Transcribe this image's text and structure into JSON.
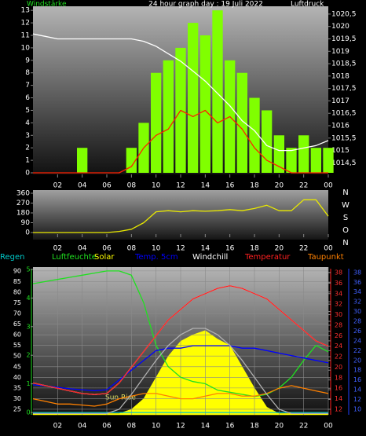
{
  "chart_data": [
    {
      "type": "combo",
      "title": "24 hour graph day : 19 Juli 2022",
      "ylabel": "Windstärke",
      "y2label": "Luftdruck",
      "x": [
        0,
        1,
        2,
        3,
        4,
        5,
        6,
        7,
        8,
        9,
        10,
        11,
        12,
        13,
        14,
        15,
        16,
        17,
        18,
        19,
        20,
        21,
        22,
        23,
        24
      ],
      "xlim": [
        0,
        24
      ],
      "xticks": [
        {
          "value": 2,
          "label": "02"
        },
        {
          "value": 4,
          "label": "04"
        },
        {
          "value": 6,
          "label": "06"
        },
        {
          "value": 8,
          "label": "08"
        },
        10,
        12,
        14,
        16,
        18,
        20,
        22,
        {
          "value": 24,
          "label": "00"
        }
      ],
      "ylim": [
        0,
        13.2
      ],
      "yticks": [
        0,
        1,
        2,
        3,
        4,
        5,
        6,
        7,
        8,
        9,
        10,
        11,
        12,
        13
      ],
      "y2lim": [
        1014.1,
        1020.75
      ],
      "y2ticks": [
        {
          "value": 1014.5,
          "label": "1014,5"
        },
        1015,
        {
          "value": 1015.5,
          "label": "1015,5"
        },
        1016,
        {
          "value": 1016.5,
          "label": "1016,5"
        },
        1017,
        {
          "value": 1017.5,
          "label": "1017,5"
        },
        1018,
        {
          "value": 1018.5,
          "label": "1018,5"
        },
        1019,
        {
          "value": 1019.5,
          "label": "1019,5"
        },
        1020,
        {
          "value": 1020.5,
          "label": "1020,5"
        }
      ],
      "grid": false,
      "series": [
        {
          "kind": "bar",
          "color": "#80ff00",
          "values": [
            0,
            0,
            0,
            0,
            2,
            0,
            0,
            0,
            2,
            4,
            8,
            9,
            10,
            12,
            11,
            13,
            9,
            8,
            6,
            5,
            3,
            2,
            3,
            2,
            2
          ]
        },
        {
          "kind": "line",
          "color": "#ff2000",
          "values": [
            0,
            0,
            0,
            0,
            0,
            0,
            0,
            0,
            0.5,
            2,
            3,
            3.5,
            5,
            4.5,
            5,
            4,
            4.5,
            3.5,
            2,
            1,
            0.5,
            0,
            0,
            0,
            0
          ]
        },
        {
          "kind": "line",
          "axis": "y2",
          "color": "#ffffff",
          "values": [
            1019.7,
            1019.6,
            1019.5,
            1019.5,
            1019.5,
            1019.5,
            1019.5,
            1019.5,
            1019.5,
            1019.4,
            1019.2,
            1018.9,
            1018.6,
            1018.2,
            1017.8,
            1017.3,
            1016.8,
            1016.2,
            1015.8,
            1015.2,
            1015.0,
            1015.0,
            1015.1,
            1015.2,
            1015.4
          ]
        }
      ]
    },
    {
      "type": "line",
      "x": [
        0,
        1,
        2,
        3,
        4,
        5,
        6,
        7,
        8,
        9,
        10,
        11,
        12,
        13,
        14,
        15,
        16,
        17,
        18,
        19,
        20,
        21,
        22,
        23,
        24
      ],
      "xlim": [
        0,
        24
      ],
      "xticks": [
        {
          "value": 2,
          "label": "02"
        },
        {
          "value": 4,
          "label": "04"
        },
        {
          "value": 6,
          "label": "06"
        },
        {
          "value": 8,
          "label": "08"
        },
        10,
        12,
        14,
        16,
        18,
        20,
        22,
        {
          "value": 24,
          "label": "00"
        }
      ],
      "ylim": [
        0,
        360
      ],
      "yticks": [
        0,
        90,
        180,
        270,
        360
      ],
      "direction_labels": [
        "N",
        "W",
        "S",
        "O",
        "N"
      ],
      "grid": false,
      "series": [
        {
          "kind": "line",
          "color": "#e8e800",
          "values": [
            0,
            0,
            0,
            0,
            0,
            0,
            0,
            10,
            30,
            90,
            190,
            200,
            190,
            200,
            195,
            200,
            210,
            200,
            220,
            250,
            200,
            200,
            300,
            300,
            150
          ]
        }
      ]
    },
    {
      "type": "combo",
      "x": [
        0,
        1,
        2,
        3,
        4,
        5,
        6,
        7,
        8,
        9,
        10,
        11,
        12,
        13,
        14,
        15,
        16,
        17,
        18,
        19,
        20,
        21,
        22,
        23,
        24
      ],
      "xlim": [
        0,
        24
      ],
      "xticks": [
        {
          "value": 2,
          "label": "02"
        },
        {
          "value": 4,
          "label": "04"
        },
        {
          "value": 6,
          "label": "06"
        },
        {
          "value": 8,
          "label": "08"
        },
        10,
        12,
        14,
        16,
        18,
        20,
        22,
        {
          "value": 24,
          "label": "00"
        }
      ],
      "ylim": [
        22.4,
        91.8
      ],
      "yticks": [
        25,
        30,
        35,
        40,
        45,
        50,
        55,
        60,
        65,
        70,
        75,
        80,
        85,
        90
      ],
      "y2lim": [
        10.95,
        39.05
      ],
      "y2ticks": [
        12,
        14,
        16,
        18,
        20,
        22,
        24,
        26,
        28,
        30,
        32,
        34,
        36,
        38
      ],
      "y3lim": [
        -0.08,
        5.08
      ],
      "y3ticks": [
        0,
        1,
        2,
        3,
        4,
        5
      ],
      "y4lim": [
        8.87,
        39.1
      ],
      "y4ticks": [
        10,
        12,
        14,
        16,
        18,
        20,
        22,
        24,
        26,
        28,
        30,
        32,
        34,
        36,
        38
      ],
      "annotation": "Sun Rise",
      "grid": true,
      "series": [
        {
          "name": "Regen",
          "kind": "line",
          "axis": "y3",
          "color": "#00c8c8",
          "values": [
            0,
            0,
            0,
            0,
            0,
            0,
            0,
            0,
            0,
            0,
            0,
            0,
            0,
            0,
            0,
            0,
            0,
            0,
            0,
            0,
            0,
            0,
            0,
            0,
            0
          ]
        },
        {
          "name": "Luftfeuchte",
          "kind": "line",
          "color": "#20e020",
          "values": [
            84,
            85,
            86,
            87,
            88,
            89,
            90,
            90,
            88,
            75,
            55,
            45,
            40,
            38,
            37,
            34,
            33,
            32,
            31,
            32,
            35,
            40,
            48,
            55,
            52
          ]
        },
        {
          "name": "Solar",
          "kind": "area",
          "color": "#ffff00",
          "values": [
            23,
            23,
            23,
            23,
            23,
            23,
            23,
            23,
            25,
            30,
            40,
            50,
            57,
            60,
            62,
            58,
            55,
            45,
            35,
            26,
            23,
            23,
            23,
            23,
            23
          ]
        },
        {
          "name": "Temp. 5cm",
          "kind": "line",
          "axis": "y4",
          "color": "#0000ff",
          "values": [
            15,
            14.8,
            14.5,
            14.2,
            14,
            13.8,
            14,
            16,
            18,
            20,
            22,
            22.5,
            22.5,
            23,
            23,
            23,
            23,
            22.5,
            22.5,
            22,
            21.5,
            21,
            20.5,
            20,
            19.5
          ]
        },
        {
          "name": "Windchill",
          "kind": "line",
          "axis": "y2",
          "color": "#ffffff",
          "values": [
            17,
            16.5,
            16,
            15.5,
            15,
            14.8,
            15,
            17,
            20,
            23,
            26,
            29,
            31,
            33,
            34,
            35,
            35.5,
            35,
            34,
            33,
            31,
            29,
            27,
            25,
            24
          ]
        },
        {
          "name": "Temperatur",
          "kind": "line",
          "axis": "y2",
          "color": "#ff2020",
          "values": [
            17,
            16.5,
            16,
            15.5,
            15,
            14.8,
            15,
            17,
            20,
            23,
            26,
            29,
            31,
            33,
            34,
            35,
            35.5,
            35,
            34,
            33,
            31,
            29,
            27,
            25,
            24
          ]
        },
        {
          "name": "Taupunkt",
          "kind": "line",
          "axis": "y2",
          "color": "#ff8000",
          "values": [
            14,
            13.5,
            13,
            13,
            12.8,
            12.6,
            13,
            14,
            14.5,
            15,
            15,
            14.5,
            14,
            14,
            14.5,
            15,
            15,
            14.5,
            14.5,
            15,
            16,
            16.5,
            16,
            15.5,
            15
          ]
        },
        {
          "kind": "line",
          "color": "#b0b0b0",
          "values": [
            23,
            23,
            23,
            23,
            23,
            23,
            23,
            25,
            32,
            40,
            48,
            55,
            60,
            63,
            63,
            60,
            55,
            48,
            40,
            32,
            25,
            23,
            23,
            23,
            23
          ]
        }
      ]
    }
  ]
}
